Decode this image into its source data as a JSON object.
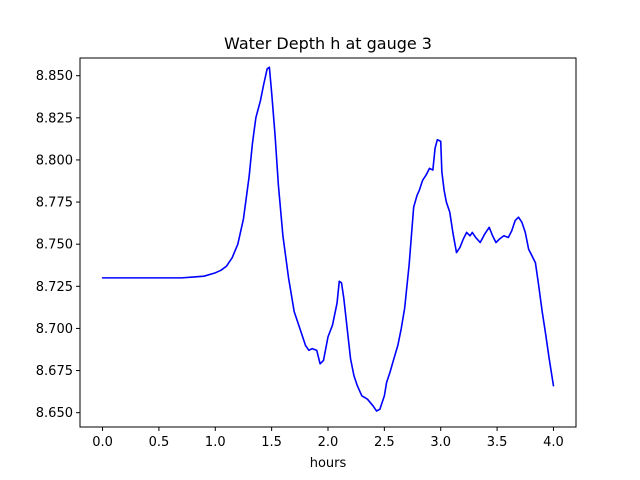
{
  "chart_data": {
    "type": "line",
    "title": "Water Depth h at gauge 3",
    "xlabel": "hours",
    "ylabel": "",
    "xlim": [
      -0.2,
      4.2
    ],
    "ylim": [
      8.6415,
      8.8605
    ],
    "xticks": [
      0.0,
      0.5,
      1.0,
      1.5,
      2.0,
      2.5,
      3.0,
      3.5,
      4.0
    ],
    "xtick_labels": [
      "0.0",
      "0.5",
      "1.0",
      "1.5",
      "2.0",
      "2.5",
      "3.0",
      "3.5",
      "4.0"
    ],
    "yticks": [
      8.65,
      8.675,
      8.7,
      8.725,
      8.75,
      8.775,
      8.8,
      8.825,
      8.85
    ],
    "ytick_labels": [
      "8.650",
      "8.675",
      "8.700",
      "8.725",
      "8.750",
      "8.775",
      "8.800",
      "8.825",
      "8.850"
    ],
    "grid": false,
    "series": [
      {
        "color": "#0000ff",
        "x": [
          0.0,
          0.2,
          0.4,
          0.6,
          0.7,
          0.8,
          0.9,
          1.0,
          1.05,
          1.1,
          1.15,
          1.2,
          1.25,
          1.3,
          1.33,
          1.36,
          1.4,
          1.43,
          1.46,
          1.48,
          1.5,
          1.53,
          1.56,
          1.6,
          1.65,
          1.7,
          1.75,
          1.8,
          1.83,
          1.86,
          1.9,
          1.93,
          1.96,
          2.0,
          2.04,
          2.08,
          2.1,
          2.12,
          2.14,
          2.16,
          2.2,
          2.23,
          2.26,
          2.3,
          2.35,
          2.4,
          2.43,
          2.46,
          2.5,
          2.52,
          2.55,
          2.58,
          2.62,
          2.65,
          2.68,
          2.72,
          2.76,
          2.79,
          2.81,
          2.84,
          2.87,
          2.9,
          2.93,
          2.95,
          2.97,
          3.0,
          3.01,
          3.03,
          3.05,
          3.08,
          3.11,
          3.14,
          3.17,
          3.2,
          3.23,
          3.26,
          3.28,
          3.31,
          3.35,
          3.39,
          3.43,
          3.46,
          3.49,
          3.52,
          3.56,
          3.6,
          3.63,
          3.66,
          3.69,
          3.72,
          3.75,
          3.78,
          3.81,
          3.84,
          3.87,
          3.9,
          3.93,
          3.96,
          4.0
        ],
        "y": [
          8.73,
          8.73,
          8.73,
          8.73,
          8.73,
          8.7305,
          8.731,
          8.733,
          8.7345,
          8.737,
          8.742,
          8.75,
          8.765,
          8.79,
          8.81,
          8.825,
          8.835,
          8.845,
          8.854,
          8.855,
          8.84,
          8.815,
          8.785,
          8.755,
          8.73,
          8.71,
          8.7,
          8.69,
          8.687,
          8.688,
          8.687,
          8.679,
          8.681,
          8.695,
          8.702,
          8.715,
          8.728,
          8.727,
          8.718,
          8.706,
          8.682,
          8.672,
          8.666,
          8.66,
          8.658,
          8.654,
          8.651,
          8.652,
          8.66,
          8.668,
          8.674,
          8.681,
          8.69,
          8.7,
          8.712,
          8.738,
          8.772,
          8.779,
          8.782,
          8.788,
          8.791,
          8.795,
          8.794,
          8.807,
          8.812,
          8.811,
          8.793,
          8.782,
          8.775,
          8.769,
          8.756,
          8.745,
          8.748,
          8.753,
          8.757,
          8.755,
          8.757,
          8.754,
          8.751,
          8.756,
          8.76,
          8.755,
          8.751,
          8.753,
          8.755,
          8.754,
          8.758,
          8.764,
          8.766,
          8.763,
          8.757,
          8.747,
          8.743,
          8.739,
          8.725,
          8.71,
          8.697,
          8.683,
          8.666
        ]
      }
    ]
  }
}
